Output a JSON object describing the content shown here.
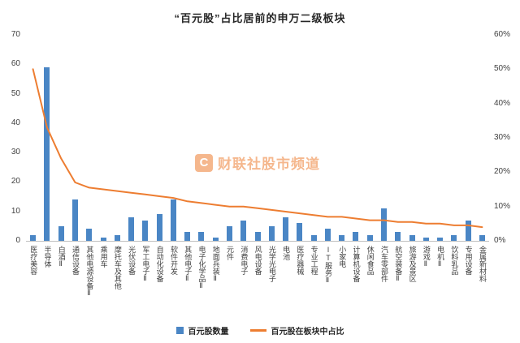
{
  "title": "“百元股”占比居前的申万二级板块",
  "watermark": {
    "logo": "C",
    "text": "财联社股市频道"
  },
  "chart_data": {
    "type": "bar",
    "title": "“百元股”占比居前的申万二级板块",
    "grid": false,
    "legend_position": "bottom",
    "categories": [
      "医疗美容",
      "半导体",
      "白酒Ⅱ",
      "通信设备",
      "其他电源设备Ⅱ",
      "乘用车",
      "摩托车及其他",
      "光伏设备",
      "军工电子Ⅱ",
      "自动化设备",
      "软件开发",
      "其他电子Ⅱ",
      "电子化学品Ⅱ",
      "地面兵装Ⅱ",
      "元件",
      "消费电子",
      "风电设备",
      "光学光电子",
      "电池",
      "医疗器械",
      "专业工程",
      "IT服务Ⅱ",
      "小家电",
      "计算机设备",
      "休闲食品",
      "汽车零部件",
      "航空装备Ⅱ",
      "旅游及景区",
      "游戏Ⅱ",
      "电机Ⅱ",
      "饮料乳品",
      "专用设备",
      "金属新材料"
    ],
    "series": [
      {
        "name": "百元股数量",
        "type": "bar",
        "axis": "left",
        "color": "#4a86c5",
        "values": [
          2,
          59,
          5,
          14,
          4,
          1,
          2,
          8,
          7,
          9,
          14,
          3,
          3,
          1,
          5,
          7,
          3,
          5,
          8,
          6,
          2,
          4,
          2,
          3,
          2,
          11,
          3,
          2,
          1,
          1,
          2,
          7,
          2
        ]
      },
      {
        "name": "百元股在板块中占比",
        "type": "line",
        "axis": "right",
        "color": "#ed7d31",
        "values": [
          50,
          33,
          24,
          17,
          15.5,
          15,
          14.5,
          14,
          13.5,
          13,
          12.5,
          11.5,
          11,
          10.5,
          10,
          10,
          9.5,
          9,
          8.5,
          8,
          7.5,
          7,
          7,
          6.5,
          6,
          6,
          5.5,
          5.5,
          5,
          5,
          4.5,
          4.5,
          4
        ]
      }
    ],
    "left_axis": {
      "min": 0,
      "max": 70,
      "ticks": [
        0,
        10,
        20,
        30,
        40,
        50,
        60,
        70
      ]
    },
    "right_axis": {
      "min": 0,
      "max": 60,
      "ticks": [
        0,
        10,
        20,
        30,
        40,
        50,
        60
      ],
      "format": "percent"
    }
  }
}
